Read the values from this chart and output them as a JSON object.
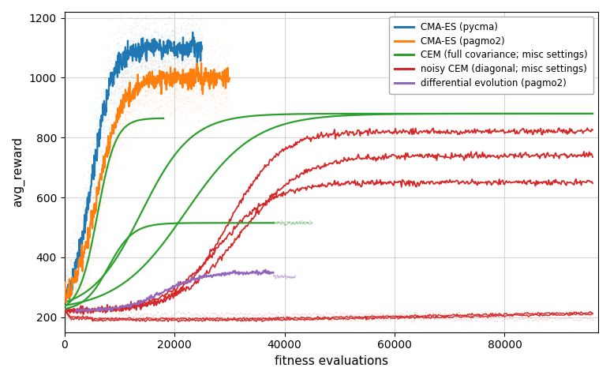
{
  "title": "",
  "xlabel": "fitness evaluations",
  "ylabel": "avg_reward",
  "xlim": [
    0,
    97000
  ],
  "ylim": [
    150,
    1220
  ],
  "yticks": [
    200,
    400,
    600,
    800,
    1000,
    1200
  ],
  "xticks": [
    0,
    20000,
    40000,
    60000,
    80000
  ],
  "colors": {
    "cma_pycma": "#1f77b4",
    "cma_pagmo2": "#ff7f0e",
    "cem_full": "#2ca02c",
    "noisy_cem": "#d62728",
    "diff_evo": "#9467bd"
  },
  "legend_labels": [
    "CMA-ES (pycma)",
    "CMA-ES (pagmo2)",
    "CEM (full covariance; misc settings)",
    "noisy CEM (diagonal; misc settings)",
    "differential evolution (pagmo2)"
  ],
  "background": "#ffffff",
  "grid_color": "#cccccc",
  "cma_pycma_x_end": 25000,
  "cma_pagmo2_x_end": 30000,
  "cma_pycma_final_y": 1100,
  "cma_pagmo2_final_y": 1000,
  "cma_pycma_k": 0.00055,
  "cma_pycma_x0": 5000,
  "cma_pagmo2_k": 0.00045,
  "cma_pagmo2_x0": 6000,
  "n_runs_pycma": 18,
  "n_runs_pagmo2": 18,
  "noise_band_pycma": 55,
  "noise_band_pagmo2": 55
}
